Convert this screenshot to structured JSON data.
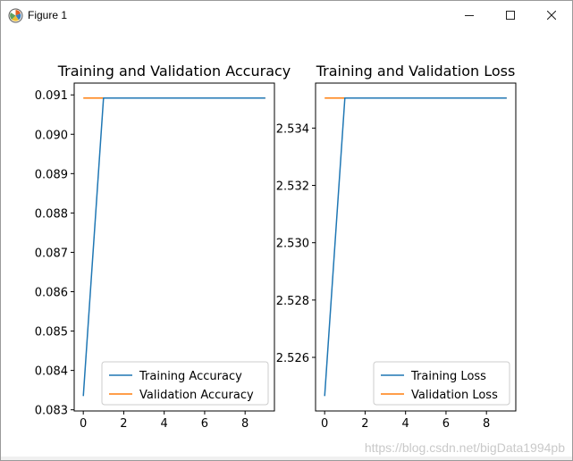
{
  "window": {
    "title": "Figure 1",
    "watermark": "https://blog.csdn.net/bigData1994pb"
  },
  "chart_data": [
    {
      "type": "line",
      "title": "Training and Validation Accuracy",
      "x": [
        0,
        1,
        2,
        3,
        4,
        5,
        6,
        7,
        8,
        9
      ],
      "series": [
        {
          "name": "Training Accuracy",
          "color": "#1f77b4",
          "values": [
            0.08335,
            0.09092,
            0.09092,
            0.09092,
            0.09092,
            0.09092,
            0.09092,
            0.09092,
            0.09092,
            0.09092
          ]
        },
        {
          "name": "Validation Accuracy",
          "color": "#ff7f0e",
          "values": [
            0.09092,
            0.09092,
            0.09092,
            0.09092,
            0.09092,
            0.09092,
            0.09092,
            0.09092,
            0.09092,
            0.09092
          ]
        }
      ],
      "xticks": [
        0,
        2,
        4,
        6,
        8
      ],
      "yticks": [
        0.083,
        0.084,
        0.085,
        0.086,
        0.087,
        0.088,
        0.089,
        0.09,
        0.091
      ],
      "ytick_labels": [
        "0.083",
        "0.084",
        "0.085",
        "0.086",
        "0.087",
        "0.088",
        "0.089",
        "0.090",
        "0.091"
      ],
      "xlim": [
        -0.45,
        9.45
      ],
      "ylim": [
        0.08297,
        0.0913
      ],
      "legend": "lower-right",
      "grid": false
    },
    {
      "type": "line",
      "title": "Training and Validation Loss",
      "x": [
        0,
        1,
        2,
        3,
        4,
        5,
        6,
        7,
        8,
        9
      ],
      "series": [
        {
          "name": "Training Loss",
          "color": "#1f77b4",
          "values": [
            2.52465,
            2.53505,
            2.53505,
            2.53505,
            2.53505,
            2.53505,
            2.53505,
            2.53505,
            2.53505,
            2.53505
          ]
        },
        {
          "name": "Validation Loss",
          "color": "#ff7f0e",
          "values": [
            2.53505,
            2.53505,
            2.53505,
            2.53505,
            2.53505,
            2.53505,
            2.53505,
            2.53505,
            2.53505,
            2.53505
          ]
        }
      ],
      "xticks": [
        0,
        2,
        4,
        6,
        8
      ],
      "yticks": [
        2.526,
        2.528,
        2.53,
        2.532,
        2.534
      ],
      "ytick_labels": [
        "2.526",
        "2.528",
        "2.530",
        "2.532",
        "2.534"
      ],
      "xlim": [
        -0.45,
        9.45
      ],
      "ylim": [
        2.52413,
        2.53557
      ],
      "legend": "lower-right",
      "grid": false
    }
  ]
}
